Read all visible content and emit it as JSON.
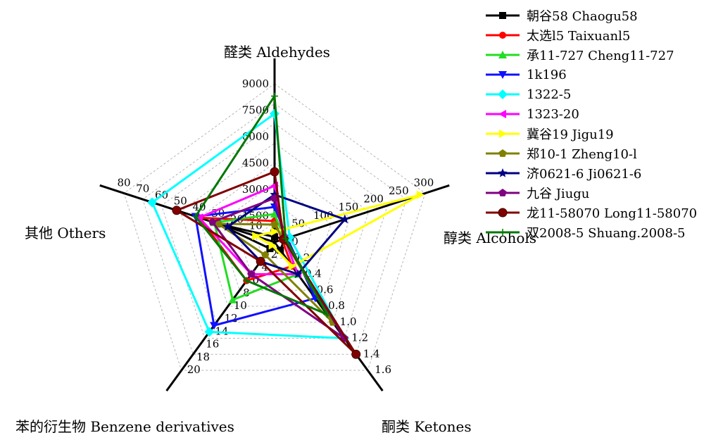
{
  "chart_data": {
    "type": "radar",
    "axes": [
      {
        "label": "醛类 Aldehydes",
        "ticks": [
          "1500",
          "3000",
          "4500",
          "6000",
          "7500",
          "9000"
        ],
        "range": [
          0,
          9000
        ]
      },
      {
        "label": "醇类 Alcohols",
        "ticks": [
          "0",
          "50",
          "100",
          "150",
          "200",
          "250",
          "300"
        ],
        "range": [
          0,
          300
        ]
      },
      {
        "label": "酮类 Ketones",
        "ticks": [
          "0.0",
          "0.2",
          "0.4",
          "0.6",
          "0.8",
          "1.0",
          "1.2",
          "1.4",
          "1.6"
        ],
        "range": [
          0,
          1.6
        ]
      },
      {
        "label": "苯的衍生物 Benzene derivatives",
        "ticks": [
          "0",
          "2",
          "4",
          "6",
          "8",
          "10",
          "12",
          "14",
          "16",
          "18",
          "20"
        ],
        "range": [
          0,
          20
        ]
      },
      {
        "label": "其他 Others",
        "ticks": [
          "0",
          "10",
          "20",
          "30",
          "40",
          "50",
          "60",
          "70",
          "80"
        ],
        "range": [
          0,
          80
        ]
      }
    ],
    "series": [
      {
        "name": "朝谷58 Chaogu58",
        "color": "#000000",
        "marker": "square",
        "values": [
          300,
          20,
          0.1,
          1,
          30
        ]
      },
      {
        "name": "太选l5 Taixuanl5",
        "color": "#ff0000",
        "marker": "circle",
        "values": [
          1200,
          15,
          0.3,
          6,
          40
        ]
      },
      {
        "name": "承11-727 Cheng11-727",
        "color": "#22dd22",
        "marker": "triangle-up",
        "values": [
          1600,
          20,
          0.4,
          9,
          32
        ]
      },
      {
        "name": "1k196",
        "color": "#1010ff",
        "marker": "triangle-down",
        "values": [
          2000,
          25,
          0.7,
          13,
          42
        ]
      },
      {
        "name": "1322-5",
        "color": "#00ffff",
        "marker": "diamond",
        "values": [
          7300,
          30,
          1.2,
          14,
          65
        ]
      },
      {
        "name": "1323-20",
        "color": "#ff00ff",
        "marker": "triangle-left",
        "values": [
          3200,
          20,
          0.4,
          5,
          40
        ]
      },
      {
        "name": "冀谷19 Jigu19",
        "color": "#ffff00",
        "marker": "triangle-right",
        "values": [
          600,
          290,
          0.3,
          0.5,
          10
        ]
      },
      {
        "name": "郑10-1 Zheng10-l",
        "color": "#808000",
        "marker": "pentagon",
        "values": [
          1000,
          18,
          1.0,
          2,
          30
        ]
      },
      {
        "name": "济0621-6 Ji0621-6",
        "color": "#000080",
        "marker": "star",
        "values": [
          2700,
          140,
          0.4,
          3,
          25
        ]
      },
      {
        "name": "九谷 Jiugu",
        "color": "#800080",
        "marker": "pentagon",
        "values": [
          2500,
          20,
          1.2,
          5,
          33
        ]
      },
      {
        "name": "龙11-58070 Long11-58070",
        "color": "#800000",
        "marker": "sphere",
        "values": [
          4000,
          18,
          1.4,
          3,
          52
        ]
      },
      {
        "name": "双2008-5 Shuang.2008-5",
        "color": "#007700",
        "marker": "plus",
        "values": [
          8300,
          22,
          0.9,
          6,
          42
        ]
      }
    ]
  }
}
